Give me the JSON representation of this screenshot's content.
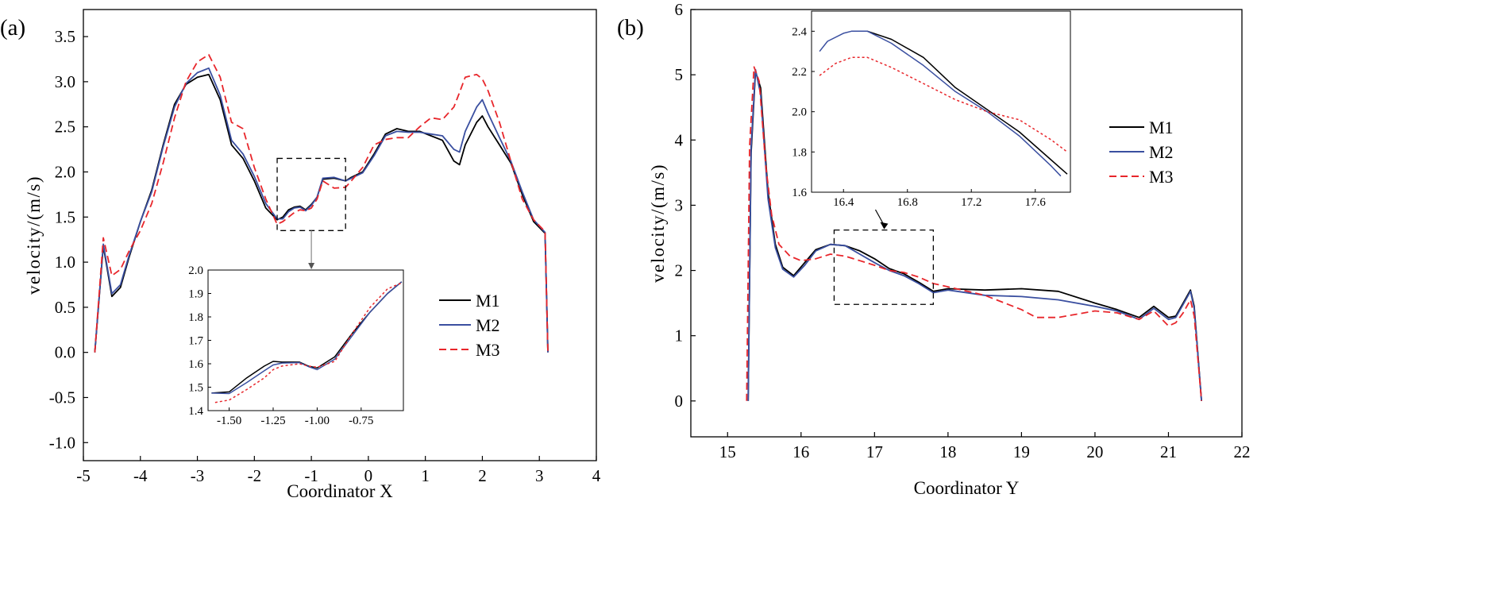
{
  "chart_data": [
    {
      "panel_label": "(a)",
      "type": "line",
      "xlabel": "Coordinator X",
      "ylabel": "velocity/(m/s)",
      "xlim": [
        -5,
        4
      ],
      "ylim": [
        -1.2,
        3.8
      ],
      "xticks": [
        -5,
        -4,
        -3,
        -2,
        -1,
        0,
        1,
        2,
        3,
        4
      ],
      "yticks": [
        -1.0,
        -0.5,
        0.0,
        0.5,
        1.0,
        1.5,
        2.0,
        2.5,
        3.0,
        3.5
      ],
      "ytick_labels": [
        "-1.0",
        "-0.5",
        "0.0",
        "0.5",
        "1.0",
        "1.5",
        "2.0",
        "2.5",
        "3.0",
        "3.5"
      ],
      "legend": {
        "position": "center-right",
        "entries": [
          "M1",
          "M2",
          "M3"
        ]
      },
      "colors": {
        "M1": "#000000",
        "M2": "#3a4fa0",
        "M3": "#e8262b"
      },
      "zoom_box": {
        "x": [
          -1.6,
          -0.4
        ],
        "y": [
          1.35,
          2.15
        ]
      },
      "series": [
        {
          "name": "M1",
          "style": "solid",
          "x": [
            -4.8,
            -4.65,
            -4.5,
            -4.35,
            -4.2,
            -4.0,
            -3.8,
            -3.6,
            -3.4,
            -3.2,
            -3.0,
            -2.8,
            -2.6,
            -2.4,
            -2.2,
            -2.0,
            -1.8,
            -1.6,
            -1.5,
            -1.4,
            -1.3,
            -1.2,
            -1.1,
            -1.0,
            -0.9,
            -0.8,
            -0.6,
            -0.4,
            -0.3,
            -0.1,
            0.1,
            0.3,
            0.5,
            0.7,
            0.9,
            1.1,
            1.3,
            1.5,
            1.6,
            1.7,
            1.9,
            2.0,
            2.1,
            2.3,
            2.5,
            2.7,
            2.9,
            3.1,
            3.15
          ],
          "y": [
            0.0,
            1.18,
            0.62,
            0.72,
            1.05,
            1.45,
            1.8,
            2.3,
            2.75,
            2.97,
            3.05,
            3.08,
            2.8,
            2.3,
            2.15,
            1.9,
            1.6,
            1.47,
            1.5,
            1.58,
            1.61,
            1.62,
            1.58,
            1.64,
            1.72,
            1.92,
            1.93,
            1.9,
            1.94,
            2.0,
            2.2,
            2.42,
            2.48,
            2.45,
            2.45,
            2.4,
            2.35,
            2.12,
            2.08,
            2.3,
            2.55,
            2.62,
            2.5,
            2.3,
            2.1,
            1.75,
            1.45,
            1.32,
            0.0
          ]
        },
        {
          "name": "M2",
          "style": "solid",
          "x": [
            -4.8,
            -4.65,
            -4.5,
            -4.35,
            -4.2,
            -4.0,
            -3.8,
            -3.6,
            -3.4,
            -3.2,
            -3.0,
            -2.8,
            -2.6,
            -2.4,
            -2.2,
            -2.0,
            -1.8,
            -1.6,
            -1.5,
            -1.4,
            -1.3,
            -1.2,
            -1.1,
            -1.0,
            -0.9,
            -0.8,
            -0.6,
            -0.4,
            -0.3,
            -0.1,
            0.1,
            0.3,
            0.5,
            0.7,
            0.9,
            1.1,
            1.3,
            1.5,
            1.6,
            1.7,
            1.9,
            2.0,
            2.1,
            2.3,
            2.5,
            2.7,
            2.9,
            3.1,
            3.15
          ],
          "y": [
            0.0,
            1.2,
            0.65,
            0.75,
            1.07,
            1.45,
            1.78,
            2.28,
            2.72,
            2.98,
            3.1,
            3.15,
            2.85,
            2.35,
            2.2,
            1.95,
            1.65,
            1.48,
            1.48,
            1.56,
            1.6,
            1.61,
            1.57,
            1.63,
            1.72,
            1.93,
            1.94,
            1.9,
            1.93,
            1.99,
            2.18,
            2.4,
            2.45,
            2.44,
            2.44,
            2.42,
            2.4,
            2.25,
            2.22,
            2.45,
            2.72,
            2.8,
            2.65,
            2.38,
            2.12,
            1.78,
            1.47,
            1.33,
            0.0
          ]
        },
        {
          "name": "M3",
          "style": "dashed",
          "x": [
            -4.8,
            -4.65,
            -4.5,
            -4.35,
            -4.2,
            -4.0,
            -3.8,
            -3.6,
            -3.4,
            -3.2,
            -3.0,
            -2.8,
            -2.6,
            -2.4,
            -2.2,
            -2.0,
            -1.8,
            -1.6,
            -1.5,
            -1.4,
            -1.3,
            -1.2,
            -1.1,
            -1.0,
            -0.9,
            -0.8,
            -0.6,
            -0.4,
            -0.3,
            -0.1,
            0.1,
            0.3,
            0.5,
            0.7,
            0.9,
            1.1,
            1.3,
            1.5,
            1.6,
            1.7,
            1.9,
            2.0,
            2.1,
            2.3,
            2.5,
            2.7,
            2.9,
            3.1,
            3.15
          ],
          "y": [
            0.0,
            1.27,
            0.85,
            0.92,
            1.12,
            1.35,
            1.65,
            2.1,
            2.6,
            3.0,
            3.22,
            3.3,
            3.05,
            2.55,
            2.48,
            2.05,
            1.7,
            1.42,
            1.45,
            1.5,
            1.55,
            1.58,
            1.57,
            1.6,
            1.7,
            1.9,
            1.82,
            1.83,
            1.9,
            2.05,
            2.3,
            2.36,
            2.38,
            2.38,
            2.5,
            2.6,
            2.58,
            2.72,
            2.88,
            3.05,
            3.08,
            3.03,
            2.9,
            2.55,
            2.12,
            1.7,
            1.47,
            1.34,
            0.0
          ]
        }
      ],
      "inset": {
        "xlim": [
          -1.62,
          -0.51
        ],
        "ylim": [
          1.4,
          2.0
        ],
        "xticks": [
          -1.5,
          -1.25,
          -1.0,
          -0.75
        ],
        "xtick_labels": [
          "-1.50",
          "-1.25",
          "-1.00",
          "-0.75"
        ],
        "yticks": [
          1.4,
          1.5,
          1.6,
          1.7,
          1.8,
          1.9,
          2.0
        ],
        "ytick_labels": [
          "1.4",
          "1.5",
          "1.6",
          "1.7",
          "1.8",
          "1.9",
          "2.0"
        ],
        "series": [
          {
            "name": "M1",
            "style": "solid",
            "x": [
              -1.6,
              -1.5,
              -1.4,
              -1.3,
              -1.25,
              -1.2,
              -1.1,
              -1.05,
              -1.0,
              -0.9,
              -0.8,
              -0.7,
              -0.6,
              -0.52
            ],
            "y": [
              1.475,
              1.48,
              1.54,
              1.59,
              1.61,
              1.607,
              1.607,
              1.59,
              1.582,
              1.63,
              1.73,
              1.82,
              1.9,
              1.95
            ]
          },
          {
            "name": "M2",
            "style": "solid",
            "x": [
              -1.6,
              -1.5,
              -1.4,
              -1.3,
              -1.25,
              -1.2,
              -1.1,
              -1.05,
              -1.0,
              -0.9,
              -0.8,
              -0.7,
              -0.6,
              -0.52
            ],
            "y": [
              1.475,
              1.473,
              1.52,
              1.57,
              1.595,
              1.603,
              1.605,
              1.588,
              1.575,
              1.62,
              1.72,
              1.82,
              1.9,
              1.95
            ]
          },
          {
            "name": "M3",
            "style": "dotted",
            "x": [
              -1.58,
              -1.5,
              -1.4,
              -1.3,
              -1.25,
              -1.2,
              -1.1,
              -1.05,
              -1.0,
              -0.9,
              -0.8,
              -0.7,
              -0.6,
              -0.52
            ],
            "y": [
              1.435,
              1.445,
              1.49,
              1.54,
              1.575,
              1.59,
              1.6,
              1.59,
              1.585,
              1.61,
              1.73,
              1.84,
              1.92,
              1.945
            ]
          }
        ]
      }
    },
    {
      "panel_label": "(b)",
      "type": "line",
      "xlabel": "Coordinator Y",
      "ylabel": "velocity/(m/s)",
      "xlim": [
        14.5,
        22
      ],
      "ylim": [
        -0.55,
        6
      ],
      "xticks": [
        15,
        16,
        17,
        18,
        19,
        20,
        21,
        22
      ],
      "yticks": [
        0,
        1,
        2,
        3,
        4,
        5,
        6
      ],
      "ytick_labels": [
        "0",
        "1",
        "2",
        "3",
        "4",
        "5",
        "6"
      ],
      "legend": {
        "position": "right",
        "entries": [
          "M1",
          "M2",
          "M3"
        ]
      },
      "colors": {
        "M1": "#000000",
        "M2": "#3a4fa0",
        "M3": "#e8262b"
      },
      "zoom_box": {
        "x": [
          16.45,
          17.8
        ],
        "y": [
          1.48,
          2.62
        ]
      },
      "series": [
        {
          "name": "M1",
          "style": "solid",
          "x": [
            15.28,
            15.32,
            15.38,
            15.45,
            15.55,
            15.65,
            15.75,
            15.9,
            16.05,
            16.2,
            16.4,
            16.6,
            16.8,
            17.0,
            17.2,
            17.4,
            17.6,
            17.8,
            18.0,
            18.5,
            19.0,
            19.5,
            20.0,
            20.3,
            20.6,
            20.8,
            21.0,
            21.1,
            21.2,
            21.3,
            21.35,
            21.45
          ],
          "y": [
            0.0,
            3.8,
            5.05,
            4.8,
            3.2,
            2.4,
            2.05,
            1.92,
            2.12,
            2.32,
            2.4,
            2.38,
            2.3,
            2.18,
            2.03,
            1.95,
            1.82,
            1.68,
            1.72,
            1.7,
            1.72,
            1.68,
            1.5,
            1.4,
            1.28,
            1.45,
            1.28,
            1.3,
            1.5,
            1.7,
            1.45,
            0.0
          ]
        },
        {
          "name": "M2",
          "style": "solid",
          "x": [
            15.28,
            15.32,
            15.38,
            15.45,
            15.55,
            15.65,
            15.75,
            15.9,
            16.05,
            16.2,
            16.4,
            16.6,
            16.8,
            17.0,
            17.2,
            17.4,
            17.6,
            17.8,
            18.0,
            18.5,
            19.0,
            19.5,
            20.0,
            20.3,
            20.6,
            20.8,
            21.0,
            21.1,
            21.2,
            21.3,
            21.35,
            21.45
          ],
          "y": [
            0.0,
            3.9,
            5.08,
            4.7,
            3.1,
            2.35,
            2.02,
            1.9,
            2.08,
            2.3,
            2.4,
            2.38,
            2.25,
            2.12,
            2.0,
            1.92,
            1.8,
            1.66,
            1.7,
            1.62,
            1.6,
            1.55,
            1.45,
            1.38,
            1.25,
            1.42,
            1.25,
            1.28,
            1.48,
            1.68,
            1.42,
            0.0
          ]
        },
        {
          "name": "M3",
          "style": "dashed",
          "x": [
            15.26,
            15.3,
            15.36,
            15.43,
            15.52,
            15.6,
            15.7,
            15.85,
            16.0,
            16.2,
            16.4,
            16.6,
            16.8,
            17.0,
            17.2,
            17.4,
            17.6,
            17.8,
            18.0,
            18.5,
            19.0,
            19.2,
            19.5,
            20.0,
            20.3,
            20.6,
            20.8,
            21.0,
            21.1,
            21.2,
            21.3,
            21.35,
            21.45
          ],
          "y": [
            0.0,
            3.9,
            5.12,
            4.9,
            3.6,
            2.85,
            2.4,
            2.22,
            2.15,
            2.18,
            2.25,
            2.22,
            2.15,
            2.08,
            2.0,
            1.97,
            1.9,
            1.8,
            1.75,
            1.62,
            1.4,
            1.28,
            1.28,
            1.38,
            1.35,
            1.25,
            1.38,
            1.15,
            1.2,
            1.35,
            1.55,
            1.3,
            0.0
          ]
        }
      ],
      "inset": {
        "xlim": [
          16.2,
          17.82
        ],
        "ylim": [
          1.6,
          2.5
        ],
        "xticks": [
          16.4,
          16.8,
          17.2,
          17.6
        ],
        "xtick_labels": [
          "16.4",
          "16.8",
          "17.2",
          "17.6"
        ],
        "yticks": [
          1.6,
          1.8,
          2.0,
          2.2,
          2.4
        ],
        "ytick_labels": [
          "1.6",
          "1.8",
          "2.0",
          "2.2",
          "2.4"
        ],
        "series": [
          {
            "name": "M1",
            "style": "solid",
            "x": [
              16.45,
              16.55,
              16.7,
              16.9,
              17.1,
              17.3,
              17.5,
              17.7,
              17.8
            ],
            "y": [
              2.4,
              2.4,
              2.36,
              2.27,
              2.12,
              2.01,
              1.9,
              1.76,
              1.69
            ]
          },
          {
            "name": "M2",
            "style": "solid",
            "x": [
              16.25,
              16.3,
              16.4,
              16.45,
              16.55,
              16.7,
              16.9,
              17.1,
              17.3,
              17.5,
              17.7,
              17.76
            ],
            "y": [
              2.3,
              2.35,
              2.39,
              2.4,
              2.4,
              2.34,
              2.23,
              2.1,
              2.0,
              1.88,
              1.73,
              1.68
            ]
          },
          {
            "name": "M3",
            "style": "dotted",
            "x": [
              16.25,
              16.35,
              16.45,
              16.55,
              16.7,
              16.9,
              17.1,
              17.3,
              17.5,
              17.7,
              17.8
            ],
            "y": [
              2.18,
              2.24,
              2.27,
              2.27,
              2.22,
              2.14,
              2.06,
              2.0,
              1.96,
              1.86,
              1.8
            ]
          }
        ]
      }
    }
  ]
}
